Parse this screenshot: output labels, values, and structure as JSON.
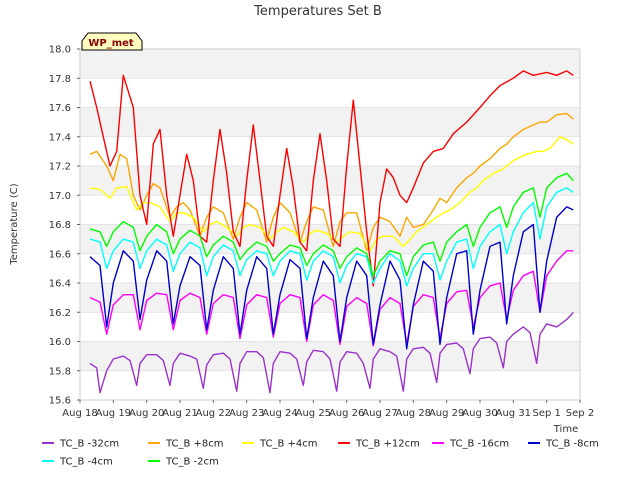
{
  "chart_data": {
    "type": "line",
    "title": "Temperatures Set B",
    "xlabel": "Time",
    "ylabel": "Temperature (C)",
    "ylim": [
      15.6,
      18.0
    ],
    "yticks": [
      "15.6",
      "15.8",
      "16.0",
      "16.2",
      "16.4",
      "16.6",
      "16.8",
      "17.0",
      "17.2",
      "17.4",
      "17.6",
      "17.8",
      "18.0"
    ],
    "xlim": [
      0,
      15
    ],
    "xticks": [
      "Aug 18",
      "Aug 19",
      "Aug 20",
      "Aug 21",
      "Aug 22",
      "Aug 23",
      "Aug 24",
      "Aug 25",
      "Aug 26",
      "Aug 27",
      "Aug 28",
      "Aug 29",
      "Aug 30",
      "Aug 31",
      "Sep 1",
      "Sep 2"
    ],
    "badge": "WP_met",
    "grid": "horizontal bands",
    "legend_position": "bottom",
    "series": [
      {
        "name": "TC_B -32cm",
        "color": "#9a32cd",
        "x": [
          0.3,
          0.5,
          0.6,
          0.8,
          1.0,
          1.3,
          1.5,
          1.7,
          1.8,
          2.0,
          2.3,
          2.5,
          2.7,
          2.8,
          3.0,
          3.3,
          3.5,
          3.7,
          3.8,
          4.0,
          4.3,
          4.5,
          4.7,
          4.8,
          5.0,
          5.3,
          5.5,
          5.7,
          5.8,
          6.0,
          6.3,
          6.5,
          6.7,
          6.8,
          7.0,
          7.3,
          7.5,
          7.7,
          7.8,
          8.0,
          8.3,
          8.5,
          8.7,
          8.8,
          9.0,
          9.3,
          9.5,
          9.7,
          9.8,
          10.0,
          10.3,
          10.5,
          10.7,
          10.8,
          11.0,
          11.3,
          11.5,
          11.7,
          11.8,
          12.0,
          12.3,
          12.5,
          12.7,
          12.8,
          13.0,
          13.3,
          13.5,
          13.7,
          13.8,
          14.0,
          14.3,
          14.6,
          14.8
        ],
        "y": [
          15.85,
          15.82,
          15.65,
          15.8,
          15.88,
          15.9,
          15.87,
          15.7,
          15.85,
          15.91,
          15.91,
          15.87,
          15.7,
          15.85,
          15.92,
          15.9,
          15.88,
          15.68,
          15.84,
          15.91,
          15.92,
          15.88,
          15.66,
          15.85,
          15.93,
          15.93,
          15.89,
          15.65,
          15.85,
          15.93,
          15.92,
          15.88,
          15.7,
          15.86,
          15.94,
          15.93,
          15.88,
          15.66,
          15.86,
          15.93,
          15.92,
          15.85,
          15.68,
          15.88,
          15.95,
          15.93,
          15.9,
          15.66,
          15.88,
          15.95,
          15.96,
          15.92,
          15.72,
          15.92,
          15.98,
          15.99,
          15.95,
          15.78,
          15.95,
          16.02,
          16.03,
          15.99,
          15.82,
          16.0,
          16.05,
          16.1,
          16.06,
          15.85,
          16.05,
          16.12,
          16.1,
          16.15,
          16.2
        ]
      },
      {
        "name": "TC_B +8cm",
        "color": "#ffa500",
        "x": [
          0.3,
          0.5,
          0.8,
          1.0,
          1.2,
          1.4,
          1.6,
          1.8,
          2.0,
          2.2,
          2.4,
          2.7,
          2.9,
          3.1,
          3.3,
          3.6,
          3.8,
          4.0,
          4.3,
          4.6,
          4.8,
          5.0,
          5.3,
          5.6,
          5.8,
          6.0,
          6.3,
          6.6,
          6.8,
          7.0,
          7.3,
          7.6,
          7.8,
          8.0,
          8.3,
          8.6,
          8.8,
          9.0,
          9.3,
          9.6,
          9.8,
          10.0,
          10.3,
          10.6,
          10.8,
          11.0,
          11.3,
          11.6,
          11.8,
          12.0,
          12.3,
          12.6,
          12.8,
          13.0,
          13.3,
          13.6,
          13.8,
          14.0,
          14.3,
          14.6,
          14.8
        ],
        "y": [
          17.28,
          17.3,
          17.2,
          17.1,
          17.28,
          17.25,
          17.0,
          16.9,
          17.0,
          17.08,
          17.05,
          16.85,
          16.92,
          16.95,
          16.9,
          16.72,
          16.85,
          16.92,
          16.88,
          16.7,
          16.85,
          16.95,
          16.9,
          16.68,
          16.85,
          16.95,
          16.88,
          16.68,
          16.82,
          16.92,
          16.9,
          16.65,
          16.82,
          16.88,
          16.88,
          16.62,
          16.78,
          16.85,
          16.82,
          16.72,
          16.85,
          16.78,
          16.8,
          16.9,
          16.98,
          16.95,
          17.05,
          17.12,
          17.15,
          17.2,
          17.25,
          17.32,
          17.35,
          17.4,
          17.45,
          17.48,
          17.5,
          17.5,
          17.55,
          17.56,
          17.52
        ]
      },
      {
        "name": "TC_B +4cm",
        "color": "#ffff00",
        "x": [
          0.3,
          0.6,
          0.9,
          1.1,
          1.4,
          1.7,
          1.9,
          2.1,
          2.4,
          2.7,
          2.9,
          3.1,
          3.4,
          3.7,
          3.9,
          4.1,
          4.4,
          4.7,
          4.9,
          5.1,
          5.4,
          5.7,
          5.9,
          6.1,
          6.4,
          6.7,
          6.9,
          7.1,
          7.4,
          7.7,
          7.9,
          8.1,
          8.4,
          8.7,
          8.9,
          9.1,
          9.4,
          9.7,
          9.9,
          10.1,
          10.4,
          10.7,
          10.9,
          11.1,
          11.4,
          11.7,
          11.9,
          12.1,
          12.4,
          12.7,
          12.9,
          13.1,
          13.4,
          13.7,
          13.9,
          14.1,
          14.4,
          14.6,
          14.8
        ],
        "y": [
          17.05,
          17.04,
          16.98,
          17.05,
          17.06,
          16.9,
          16.95,
          16.95,
          16.92,
          16.82,
          16.88,
          16.88,
          16.85,
          16.75,
          16.8,
          16.82,
          16.78,
          16.72,
          16.78,
          16.8,
          16.78,
          16.7,
          16.75,
          16.78,
          16.75,
          16.68,
          16.74,
          16.76,
          16.74,
          16.68,
          16.72,
          16.75,
          16.74,
          16.62,
          16.7,
          16.72,
          16.72,
          16.65,
          16.7,
          16.75,
          16.8,
          16.85,
          16.88,
          16.9,
          16.95,
          17.02,
          17.05,
          17.1,
          17.15,
          17.18,
          17.22,
          17.25,
          17.28,
          17.3,
          17.3,
          17.32,
          17.4,
          17.38,
          17.35
        ]
      },
      {
        "name": "TC_B +12cm",
        "color": "#ff0000",
        "x": [
          0.3,
          0.5,
          0.7,
          0.9,
          1.1,
          1.3,
          1.6,
          1.8,
          2.0,
          2.2,
          2.4,
          2.6,
          2.8,
          3.0,
          3.2,
          3.4,
          3.6,
          3.8,
          4.0,
          4.2,
          4.4,
          4.6,
          4.8,
          5.0,
          5.2,
          5.4,
          5.6,
          5.8,
          6.0,
          6.2,
          6.4,
          6.6,
          6.8,
          7.0,
          7.2,
          7.4,
          7.6,
          7.8,
          8.0,
          8.2,
          8.4,
          8.6,
          8.8,
          9.0,
          9.2,
          9.4,
          9.6,
          9.8,
          10.0,
          10.3,
          10.6,
          10.9,
          11.2,
          11.6,
          12.0,
          12.3,
          12.6,
          13.0,
          13.3,
          13.6,
          14.0,
          14.3,
          14.6,
          14.8
        ],
        "y": [
          17.78,
          17.6,
          17.4,
          17.2,
          17.3,
          17.82,
          17.6,
          17.0,
          16.8,
          17.35,
          17.45,
          17.0,
          16.72,
          17.0,
          17.28,
          17.1,
          16.72,
          16.68,
          17.1,
          17.45,
          17.15,
          16.75,
          16.65,
          17.1,
          17.48,
          17.1,
          16.72,
          16.65,
          17.0,
          17.32,
          17.05,
          16.68,
          16.62,
          17.1,
          17.42,
          17.1,
          16.7,
          16.65,
          17.2,
          17.65,
          17.2,
          16.75,
          16.38,
          16.95,
          17.18,
          17.12,
          17.0,
          16.95,
          17.05,
          17.22,
          17.3,
          17.32,
          17.42,
          17.5,
          17.6,
          17.68,
          17.75,
          17.8,
          17.85,
          17.82,
          17.84,
          17.82,
          17.85,
          17.82
        ]
      },
      {
        "name": "TC_B -16cm",
        "color": "#ff00ff",
        "x": [
          0.3,
          0.6,
          0.8,
          1.0,
          1.3,
          1.6,
          1.8,
          2.0,
          2.3,
          2.6,
          2.8,
          3.0,
          3.3,
          3.6,
          3.8,
          4.0,
          4.3,
          4.6,
          4.8,
          5.0,
          5.3,
          5.6,
          5.8,
          6.0,
          6.3,
          6.6,
          6.8,
          7.0,
          7.3,
          7.6,
          7.8,
          8.0,
          8.3,
          8.6,
          8.8,
          9.0,
          9.3,
          9.6,
          9.8,
          10.0,
          10.3,
          10.6,
          10.8,
          11.0,
          11.3,
          11.6,
          11.8,
          12.0,
          12.3,
          12.6,
          12.8,
          13.0,
          13.3,
          13.6,
          13.8,
          14.0,
          14.3,
          14.6,
          14.8
        ],
        "y": [
          16.3,
          16.27,
          16.05,
          16.25,
          16.32,
          16.32,
          16.08,
          16.28,
          16.33,
          16.32,
          16.08,
          16.28,
          16.33,
          16.3,
          16.05,
          16.26,
          16.32,
          16.3,
          16.02,
          16.25,
          16.32,
          16.3,
          16.03,
          16.26,
          16.32,
          16.3,
          16.0,
          16.25,
          16.32,
          16.28,
          15.98,
          16.24,
          16.3,
          16.26,
          15.97,
          16.22,
          16.3,
          16.26,
          15.98,
          16.24,
          16.32,
          16.3,
          16.02,
          16.26,
          16.34,
          16.35,
          16.1,
          16.3,
          16.38,
          16.4,
          16.15,
          16.35,
          16.45,
          16.48,
          16.2,
          16.45,
          16.55,
          16.62,
          16.62
        ]
      },
      {
        "name": "TC_B -8cm",
        "color": "#0000cd",
        "x": [
          0.3,
          0.6,
          0.8,
          1.0,
          1.3,
          1.6,
          1.8,
          2.0,
          2.3,
          2.6,
          2.8,
          3.0,
          3.3,
          3.6,
          3.8,
          4.0,
          4.3,
          4.6,
          4.8,
          5.0,
          5.3,
          5.6,
          5.8,
          6.0,
          6.3,
          6.6,
          6.8,
          7.0,
          7.3,
          7.6,
          7.8,
          8.0,
          8.3,
          8.6,
          8.8,
          9.0,
          9.3,
          9.6,
          9.8,
          10.0,
          10.3,
          10.6,
          10.8,
          11.0,
          11.3,
          11.6,
          11.8,
          12.0,
          12.3,
          12.6,
          12.8,
          13.0,
          13.3,
          13.6,
          13.8,
          14.0,
          14.3,
          14.6,
          14.8
        ],
        "y": [
          16.58,
          16.52,
          16.1,
          16.4,
          16.62,
          16.55,
          16.15,
          16.42,
          16.62,
          16.55,
          16.12,
          16.38,
          16.58,
          16.52,
          16.08,
          16.35,
          16.58,
          16.5,
          16.05,
          16.35,
          16.58,
          16.5,
          16.05,
          16.32,
          16.56,
          16.5,
          16.02,
          16.3,
          16.55,
          16.45,
          16.0,
          16.3,
          16.55,
          16.45,
          15.98,
          16.25,
          16.55,
          16.42,
          15.95,
          16.25,
          16.55,
          16.48,
          15.98,
          16.3,
          16.6,
          16.62,
          16.05,
          16.35,
          16.65,
          16.68,
          16.12,
          16.45,
          16.75,
          16.8,
          16.2,
          16.55,
          16.85,
          16.92,
          16.9
        ]
      },
      {
        "name": "TC_B -4cm",
        "color": "#00ffff",
        "x": [
          0.3,
          0.6,
          0.8,
          1.0,
          1.3,
          1.6,
          1.8,
          2.0,
          2.3,
          2.6,
          2.8,
          3.0,
          3.3,
          3.6,
          3.8,
          4.0,
          4.3,
          4.6,
          4.8,
          5.0,
          5.3,
          5.6,
          5.8,
          6.0,
          6.3,
          6.6,
          6.8,
          7.0,
          7.3,
          7.6,
          7.8,
          8.0,
          8.3,
          8.6,
          8.8,
          9.0,
          9.3,
          9.6,
          9.8,
          10.0,
          10.3,
          10.6,
          10.8,
          11.0,
          11.3,
          11.6,
          11.8,
          12.0,
          12.3,
          12.6,
          12.8,
          13.0,
          13.3,
          13.6,
          13.8,
          14.0,
          14.3,
          14.6,
          14.8
        ],
        "y": [
          16.7,
          16.68,
          16.5,
          16.62,
          16.7,
          16.68,
          16.5,
          16.62,
          16.7,
          16.66,
          16.48,
          16.6,
          16.68,
          16.64,
          16.45,
          16.58,
          16.66,
          16.62,
          16.45,
          16.56,
          16.62,
          16.6,
          16.45,
          16.55,
          16.62,
          16.6,
          16.42,
          16.55,
          16.62,
          16.58,
          16.4,
          16.52,
          16.6,
          16.58,
          16.4,
          16.5,
          16.6,
          16.55,
          16.38,
          16.5,
          16.6,
          16.6,
          16.42,
          16.55,
          16.68,
          16.7,
          16.5,
          16.65,
          16.75,
          16.8,
          16.6,
          16.75,
          16.88,
          16.95,
          16.7,
          16.92,
          17.02,
          17.05,
          17.02
        ]
      },
      {
        "name": "TC_B -2cm",
        "color": "#00ff00",
        "x": [
          0.3,
          0.6,
          0.8,
          1.0,
          1.3,
          1.6,
          1.8,
          2.0,
          2.3,
          2.6,
          2.8,
          3.0,
          3.3,
          3.6,
          3.8,
          4.0,
          4.3,
          4.6,
          4.8,
          5.0,
          5.3,
          5.6,
          5.8,
          6.0,
          6.3,
          6.6,
          6.8,
          7.0,
          7.3,
          7.6,
          7.8,
          8.0,
          8.3,
          8.6,
          8.8,
          9.0,
          9.3,
          9.6,
          9.8,
          10.0,
          10.3,
          10.6,
          10.8,
          11.0,
          11.3,
          11.6,
          11.8,
          12.0,
          12.3,
          12.6,
          12.8,
          13.0,
          13.3,
          13.6,
          13.8,
          14.0,
          14.3,
          14.6,
          14.8
        ],
        "y": [
          16.77,
          16.75,
          16.65,
          16.75,
          16.82,
          16.78,
          16.62,
          16.72,
          16.8,
          16.75,
          16.6,
          16.7,
          16.76,
          16.72,
          16.58,
          16.66,
          16.72,
          16.68,
          16.56,
          16.62,
          16.68,
          16.65,
          16.55,
          16.6,
          16.66,
          16.64,
          16.52,
          16.6,
          16.66,
          16.62,
          16.5,
          16.58,
          16.64,
          16.6,
          16.45,
          16.55,
          16.62,
          16.6,
          16.45,
          16.58,
          16.66,
          16.68,
          16.55,
          16.68,
          16.75,
          16.8,
          16.65,
          16.78,
          16.88,
          16.92,
          16.78,
          16.92,
          17.02,
          17.05,
          16.85,
          17.05,
          17.12,
          17.15,
          17.1
        ]
      }
    ]
  }
}
